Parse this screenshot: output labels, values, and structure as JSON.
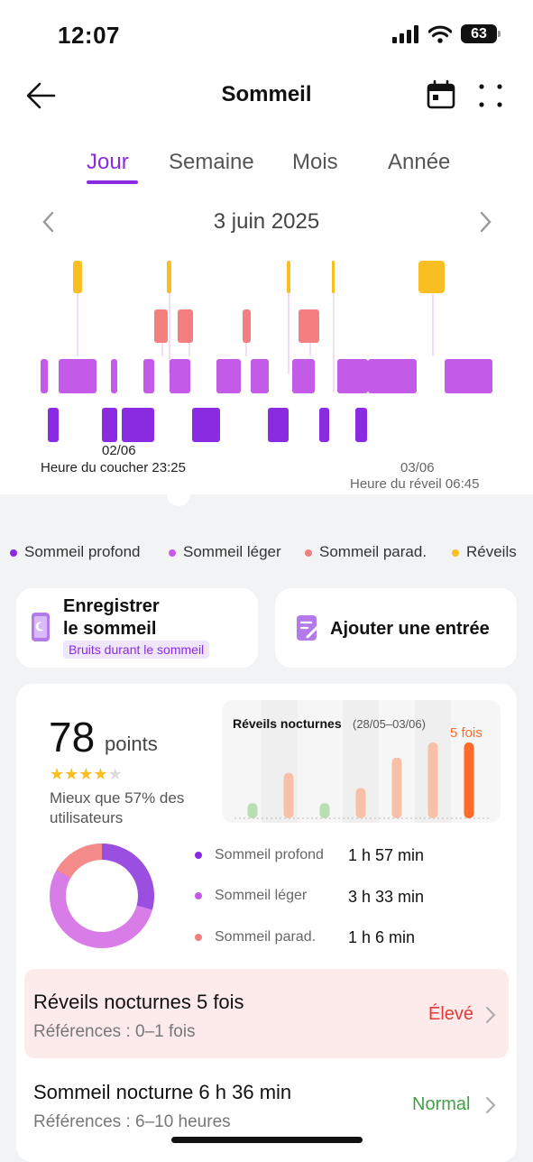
{
  "status": {
    "time": "12:07",
    "battery": "63"
  },
  "header": {
    "title": "Sommeil"
  },
  "tabs": [
    {
      "label": "Jour",
      "active": true
    },
    {
      "label": "Semaine",
      "active": false
    },
    {
      "label": "Mois",
      "active": false
    },
    {
      "label": "Année",
      "active": false
    }
  ],
  "date": {
    "label": "3 juin 2025"
  },
  "sleep_chart": {
    "start_date": "02/06",
    "bedtime_label": "Heure du coucher 23:25",
    "end_date": "03/06",
    "wake_label": "Heure du réveil 06:45"
  },
  "legend": [
    {
      "label": "Sommeil profond",
      "color": "#8a2be2"
    },
    {
      "label": "Sommeil léger",
      "color": "#c35be8"
    },
    {
      "label": "Sommeil parad.",
      "color": "#f47f7f"
    },
    {
      "label": "Réveils",
      "color": "#f8be22"
    }
  ],
  "actions": {
    "record_title_line1": "Enregistrer",
    "record_title_line2": "le sommeil",
    "record_chip": "Bruits durant le sommeil",
    "add_entry": "Ajouter une entrée"
  },
  "score": {
    "value": "78",
    "unit": "points",
    "stars": 4,
    "max_stars": 5,
    "comparison": "Mieux que 57% des utilisateurs"
  },
  "awakenings_chart": {
    "title": "Réveils nocturnes",
    "range": "(28/05–03/06)",
    "count_label": "5 fois",
    "values": [
      1,
      3,
      1,
      2,
      4,
      5,
      5
    ],
    "colors": [
      "#b9dfb0",
      "#f8c0a8",
      "#b9dfb0",
      "#f8c0a8",
      "#f8c0a8",
      "#f8c0a8",
      "#ff6a2b"
    ]
  },
  "stages": [
    {
      "label": "Sommeil profond",
      "value": "1 h 57 min",
      "color": "#8a2be2"
    },
    {
      "label": "Sommeil léger",
      "value": "3 h 33 min",
      "color": "#c35be8"
    },
    {
      "label": "Sommeil parad.",
      "value": "1 h 6 min",
      "color": "#f47f7f"
    }
  ],
  "rows": [
    {
      "title": "Réveils nocturnes 5 fois",
      "ref": "Références : 0–1 fois",
      "status": "Élevé",
      "status_color": "#e53935"
    },
    {
      "title": "Sommeil nocturne 6 h 36 min",
      "ref": "Références : 6–10 heures",
      "status": "Normal",
      "status_color": "#43a047"
    }
  ]
}
